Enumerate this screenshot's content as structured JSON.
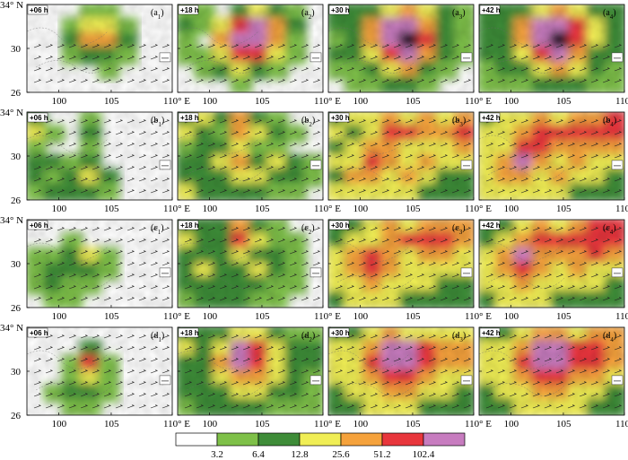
{
  "chart_data": {
    "type": "heatmap",
    "colorbar": {
      "ticks": [
        "3.2",
        "6.4",
        "12.8",
        "25.6",
        "51.2",
        "102.4"
      ],
      "colors": [
        "#ffffff",
        "#7ec048",
        "#3e8c38",
        "#f0ee55",
        "#f5a23c",
        "#e8363c",
        "#c77cbf"
      ]
    },
    "axes": {
      "y_ticks": [
        "34° N",
        "30",
        "26"
      ],
      "x_ticks": [
        "100",
        "105",
        "110° E"
      ]
    },
    "rows": [
      "a",
      "b",
      "c",
      "d"
    ],
    "times": [
      "+06 h",
      "+18 h",
      "+30 h",
      "+42 h"
    ],
    "panels": [
      {
        "id": "a1",
        "time": "+06 h",
        "level": [
          [
            0,
            0,
            0,
            1,
            1,
            0,
            0,
            0
          ],
          [
            0,
            0,
            1,
            3,
            3,
            1,
            0,
            0
          ],
          [
            0,
            0,
            2,
            4,
            4,
            2,
            0,
            0
          ],
          [
            0,
            0,
            1,
            2,
            2,
            1,
            0,
            0
          ],
          [
            0,
            0,
            0,
            0,
            1,
            0,
            0,
            0
          ],
          [
            0,
            0,
            0,
            0,
            0,
            0,
            0,
            0
          ]
        ]
      },
      {
        "id": "a2",
        "time": "+18 h",
        "level": [
          [
            1,
            1,
            0,
            2,
            3,
            2,
            1,
            0
          ],
          [
            2,
            1,
            3,
            5,
            6,
            4,
            2,
            0
          ],
          [
            1,
            0,
            4,
            6,
            6,
            4,
            1,
            0
          ],
          [
            1,
            1,
            3,
            5,
            5,
            3,
            1,
            0
          ],
          [
            0,
            1,
            2,
            3,
            2,
            1,
            0,
            0
          ],
          [
            0,
            0,
            0,
            1,
            0,
            0,
            0,
            0
          ]
        ]
      },
      {
        "id": "a3",
        "time": "+30 h",
        "level": [
          [
            2,
            2,
            2,
            3,
            4,
            3,
            2,
            1
          ],
          [
            2,
            2,
            4,
            6,
            6,
            4,
            2,
            1
          ],
          [
            1,
            2,
            4,
            6,
            7,
            5,
            2,
            1
          ],
          [
            2,
            2,
            3,
            5,
            6,
            4,
            2,
            1
          ],
          [
            1,
            1,
            2,
            3,
            4,
            2,
            1,
            0
          ],
          [
            0,
            1,
            1,
            2,
            2,
            1,
            0,
            0
          ]
        ]
      },
      {
        "id": "a4",
        "time": "+42 h",
        "level": [
          [
            2,
            2,
            2,
            3,
            4,
            3,
            2,
            2
          ],
          [
            2,
            2,
            4,
            6,
            6,
            5,
            3,
            2
          ],
          [
            2,
            2,
            4,
            6,
            7,
            5,
            3,
            2
          ],
          [
            2,
            2,
            3,
            5,
            6,
            4,
            2,
            2
          ],
          [
            1,
            2,
            2,
            3,
            4,
            3,
            2,
            1
          ],
          [
            1,
            1,
            1,
            2,
            2,
            2,
            1,
            1
          ]
        ]
      },
      {
        "id": "b1",
        "time": "+06 h",
        "level": [
          [
            2,
            0,
            0,
            1,
            0,
            0,
            0,
            0
          ],
          [
            3,
            1,
            0,
            2,
            0,
            0,
            0,
            0
          ],
          [
            1,
            0,
            0,
            1,
            0,
            0,
            0,
            0
          ],
          [
            2,
            2,
            1,
            2,
            0,
            0,
            0,
            0
          ],
          [
            2,
            1,
            2,
            3,
            2,
            0,
            0,
            0
          ],
          [
            1,
            2,
            2,
            2,
            1,
            0,
            0,
            0
          ]
        ]
      },
      {
        "id": "b2",
        "time": "+18 h",
        "level": [
          [
            2,
            3,
            2,
            4,
            2,
            1,
            0,
            0
          ],
          [
            3,
            2,
            1,
            4,
            3,
            2,
            1,
            0
          ],
          [
            1,
            2,
            2,
            3,
            1,
            1,
            0,
            0
          ],
          [
            2,
            2,
            3,
            4,
            2,
            3,
            2,
            1
          ],
          [
            2,
            2,
            2,
            3,
            3,
            2,
            2,
            1
          ],
          [
            3,
            2,
            2,
            2,
            2,
            1,
            1,
            0
          ]
        ]
      },
      {
        "id": "b3",
        "time": "+30 h",
        "level": [
          [
            2,
            3,
            3,
            4,
            3,
            4,
            3,
            4
          ],
          [
            3,
            2,
            3,
            5,
            5,
            4,
            4,
            5
          ],
          [
            2,
            3,
            4,
            4,
            3,
            3,
            3,
            4
          ],
          [
            3,
            3,
            5,
            4,
            3,
            4,
            3,
            3
          ],
          [
            2,
            4,
            4,
            3,
            4,
            3,
            2,
            2
          ],
          [
            3,
            3,
            3,
            3,
            3,
            2,
            2,
            2
          ]
        ]
      },
      {
        "id": "b4",
        "time": "+42 h",
        "level": [
          [
            2,
            3,
            3,
            4,
            3,
            4,
            4,
            5
          ],
          [
            3,
            3,
            4,
            5,
            5,
            5,
            5,
            5
          ],
          [
            3,
            3,
            5,
            5,
            4,
            4,
            4,
            4
          ],
          [
            3,
            4,
            6,
            4,
            3,
            4,
            3,
            3
          ],
          [
            3,
            4,
            4,
            3,
            4,
            3,
            3,
            2
          ],
          [
            3,
            3,
            3,
            3,
            3,
            2,
            2,
            2
          ]
        ]
      },
      {
        "id": "c1",
        "time": "+06 h",
        "level": [
          [
            0,
            0,
            0,
            0,
            0,
            0,
            0,
            0
          ],
          [
            0,
            0,
            1,
            0,
            0,
            0,
            0,
            0
          ],
          [
            1,
            1,
            2,
            3,
            1,
            0,
            0,
            0
          ],
          [
            1,
            2,
            2,
            2,
            1,
            0,
            0,
            0
          ],
          [
            1,
            2,
            1,
            1,
            0,
            0,
            0,
            0
          ],
          [
            0,
            1,
            1,
            0,
            0,
            0,
            0,
            0
          ]
        ]
      },
      {
        "id": "c2",
        "time": "+18 h",
        "level": [
          [
            2,
            2,
            2,
            4,
            2,
            1,
            0,
            0
          ],
          [
            3,
            2,
            2,
            5,
            3,
            1,
            1,
            0
          ],
          [
            2,
            2,
            2,
            3,
            2,
            2,
            1,
            0
          ],
          [
            2,
            3,
            2,
            2,
            3,
            2,
            1,
            0
          ],
          [
            2,
            2,
            2,
            2,
            2,
            1,
            1,
            0
          ],
          [
            1,
            2,
            2,
            2,
            1,
            1,
            0,
            0
          ]
        ]
      },
      {
        "id": "c3",
        "time": "+30 h",
        "level": [
          [
            2,
            2,
            3,
            4,
            3,
            4,
            4,
            4
          ],
          [
            2,
            3,
            3,
            4,
            5,
            5,
            5,
            4
          ],
          [
            3,
            4,
            5,
            4,
            3,
            4,
            4,
            3
          ],
          [
            3,
            4,
            5,
            4,
            3,
            3,
            3,
            3
          ],
          [
            3,
            3,
            4,
            3,
            3,
            3,
            2,
            2
          ],
          [
            2,
            3,
            3,
            3,
            2,
            2,
            2,
            2
          ]
        ]
      },
      {
        "id": "c4",
        "time": "+42 h",
        "level": [
          [
            2,
            2,
            3,
            4,
            3,
            4,
            5,
            5
          ],
          [
            2,
            3,
            4,
            5,
            5,
            5,
            5,
            5
          ],
          [
            3,
            4,
            6,
            4,
            4,
            4,
            5,
            4
          ],
          [
            3,
            4,
            5,
            4,
            3,
            4,
            3,
            3
          ],
          [
            3,
            3,
            4,
            3,
            3,
            3,
            3,
            2
          ],
          [
            2,
            3,
            3,
            3,
            2,
            2,
            2,
            2
          ]
        ]
      },
      {
        "id": "d1",
        "time": "+06 h",
        "level": [
          [
            0,
            0,
            0,
            0,
            0,
            0,
            0,
            0
          ],
          [
            0,
            0,
            0,
            2,
            0,
            0,
            0,
            0
          ],
          [
            0,
            0,
            1,
            5,
            1,
            0,
            0,
            0
          ],
          [
            0,
            0,
            1,
            3,
            1,
            0,
            0,
            0
          ],
          [
            0,
            1,
            2,
            2,
            1,
            0,
            0,
            0
          ],
          [
            0,
            0,
            1,
            1,
            0,
            0,
            0,
            0
          ]
        ]
      },
      {
        "id": "d2",
        "time": "+18 h",
        "level": [
          [
            2,
            2,
            2,
            3,
            3,
            2,
            1,
            1
          ],
          [
            3,
            2,
            3,
            6,
            5,
            3,
            2,
            2
          ],
          [
            2,
            2,
            4,
            6,
            5,
            3,
            2,
            2
          ],
          [
            2,
            2,
            3,
            4,
            4,
            3,
            2,
            1
          ],
          [
            2,
            2,
            2,
            3,
            3,
            2,
            2,
            1
          ],
          [
            1,
            2,
            2,
            2,
            2,
            1,
            1,
            1
          ]
        ]
      },
      {
        "id": "d3",
        "time": "+30 h",
        "level": [
          [
            2,
            2,
            3,
            4,
            3,
            3,
            3,
            3
          ],
          [
            3,
            3,
            4,
            6,
            6,
            5,
            4,
            4
          ],
          [
            3,
            3,
            5,
            6,
            6,
            5,
            4,
            4
          ],
          [
            3,
            3,
            4,
            5,
            5,
            4,
            3,
            3
          ],
          [
            2,
            3,
            3,
            4,
            4,
            3,
            3,
            2
          ],
          [
            2,
            2,
            3,
            3,
            3,
            2,
            2,
            2
          ]
        ]
      },
      {
        "id": "d4",
        "time": "+42 h",
        "level": [
          [
            2,
            2,
            3,
            4,
            4,
            3,
            4,
            4
          ],
          [
            3,
            3,
            4,
            6,
            6,
            5,
            5,
            4
          ],
          [
            3,
            3,
            5,
            6,
            6,
            5,
            5,
            4
          ],
          [
            3,
            3,
            4,
            5,
            5,
            4,
            4,
            3
          ],
          [
            2,
            3,
            3,
            4,
            4,
            3,
            3,
            2
          ],
          [
            2,
            2,
            3,
            3,
            3,
            3,
            2,
            2
          ]
        ]
      }
    ]
  }
}
